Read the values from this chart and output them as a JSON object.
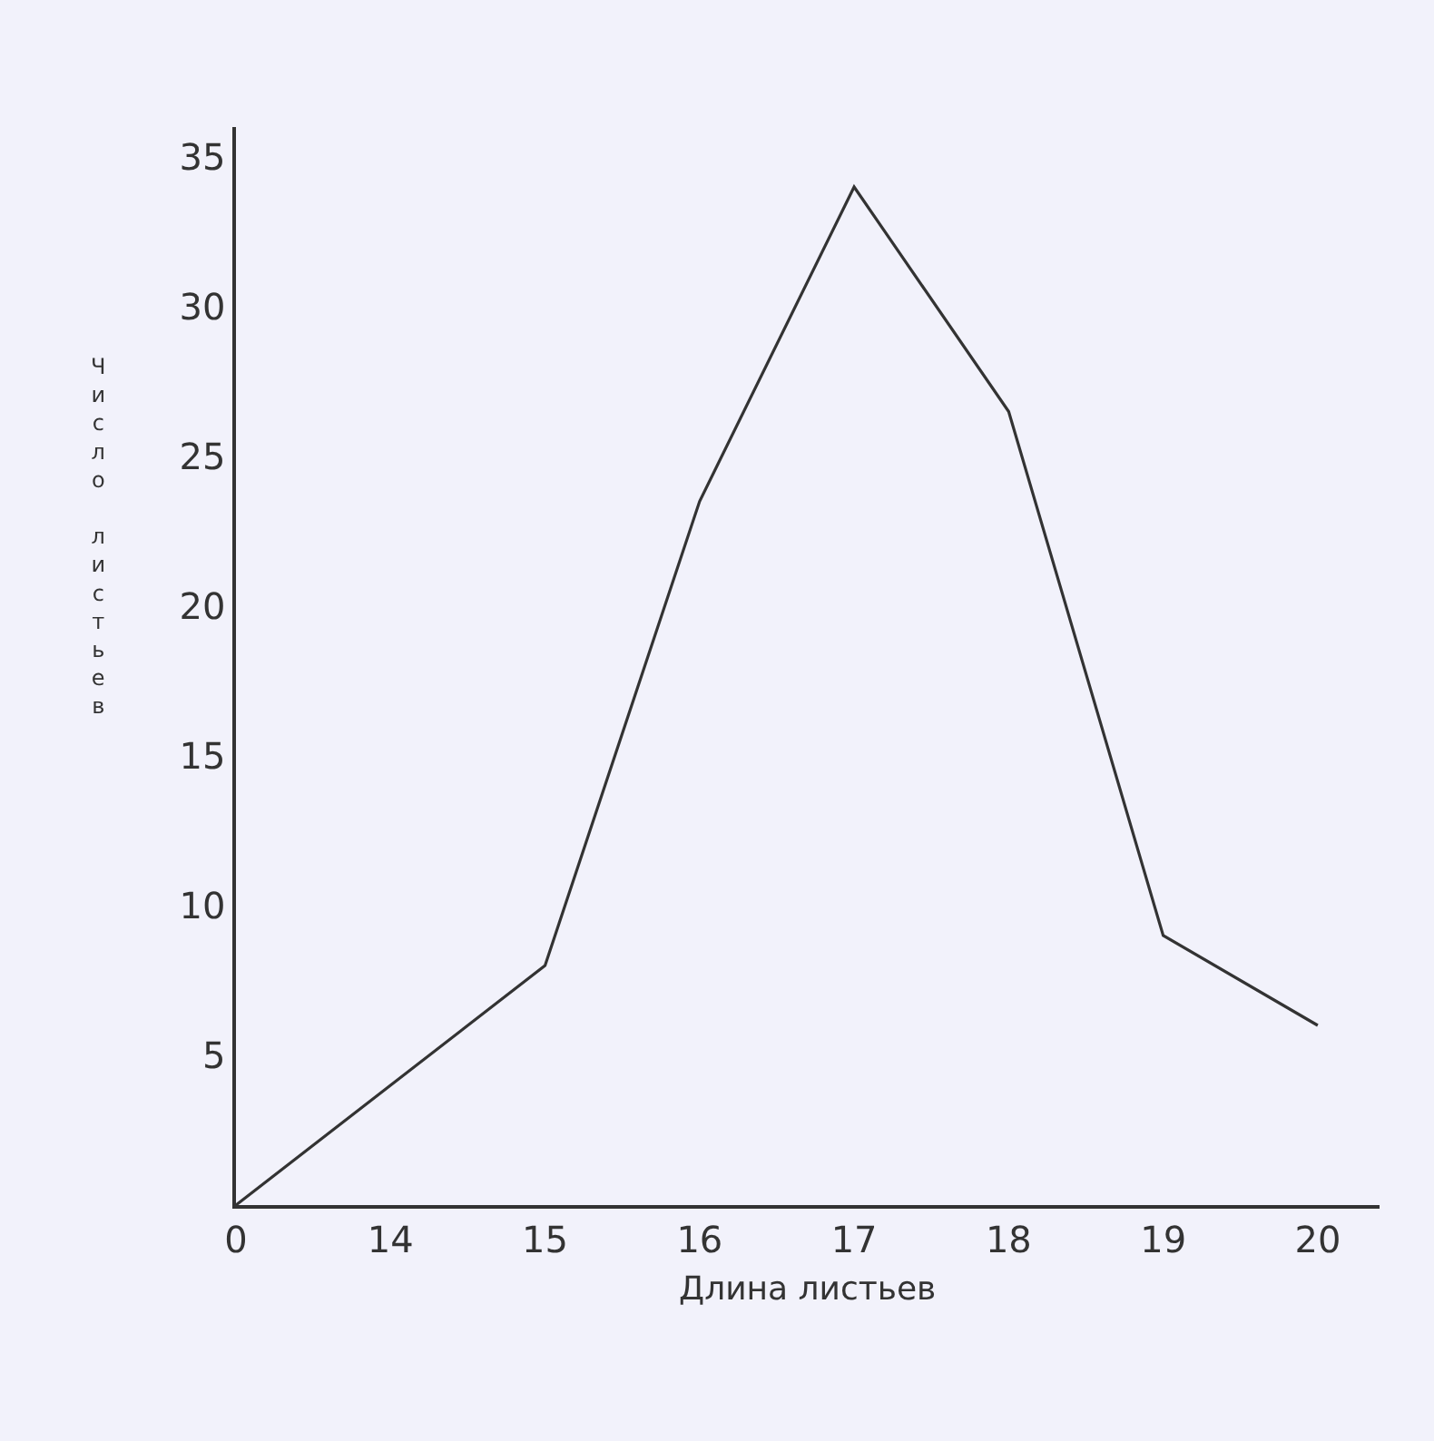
{
  "chart_data": {
    "type": "line",
    "xlabel": "Длина листьев",
    "ylabel": "Число листьев",
    "categories": [
      "0",
      "14",
      "15",
      "16",
      "17",
      "18",
      "19",
      "20"
    ],
    "series": [
      {
        "color": "#333333",
        "values": [
          0,
          4,
          8,
          23.5,
          34,
          26.5,
          9,
          6
        ]
      }
    ],
    "ylim": [
      0,
      36
    ],
    "yticks": [
      5,
      10,
      15,
      20,
      25,
      30,
      35
    ],
    "grid": false,
    "marker": "none",
    "line_style": "solid"
  }
}
